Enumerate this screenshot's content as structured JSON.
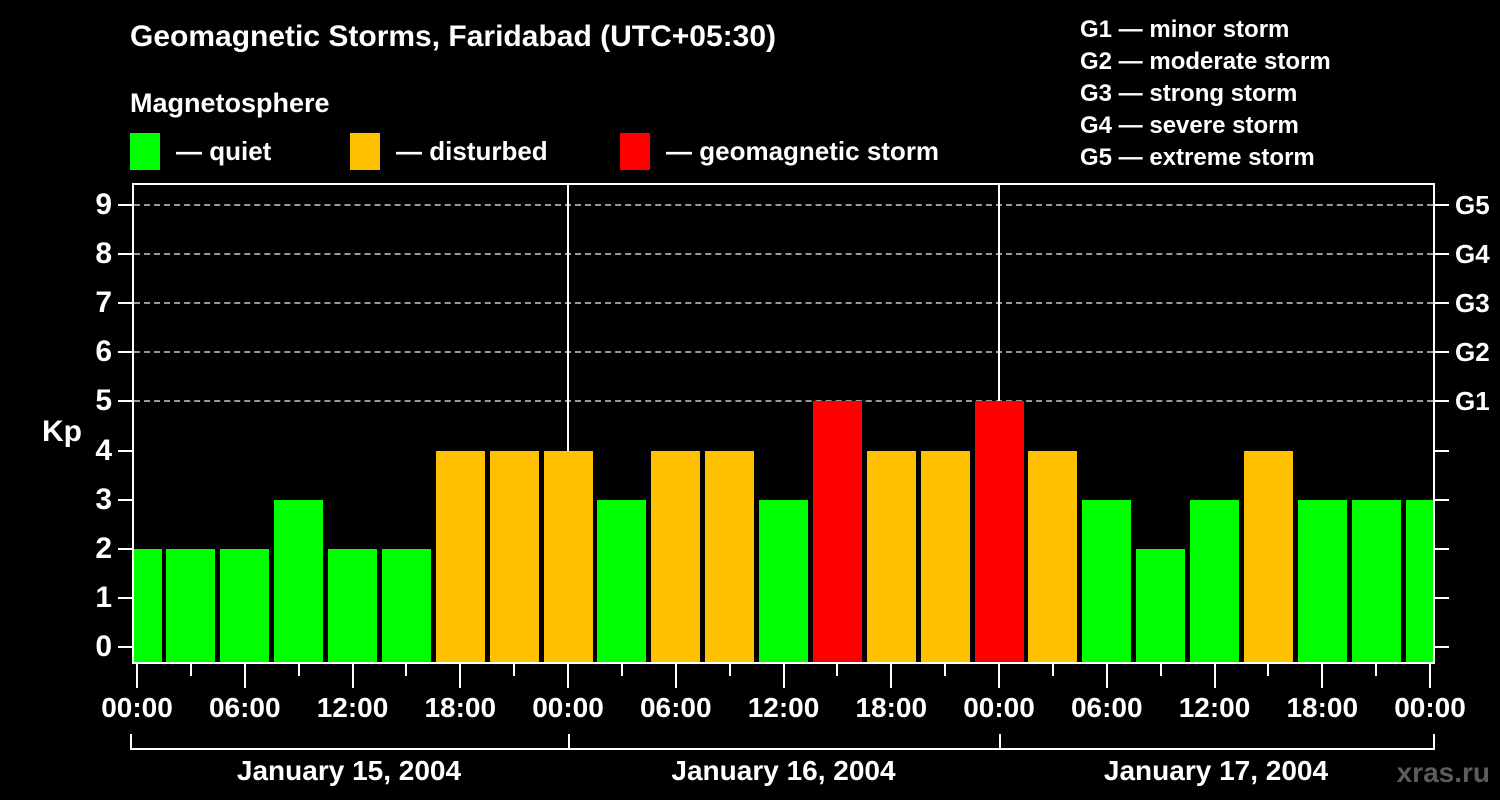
{
  "header": {
    "title": "Geomagnetic Storms, Faridabad (UTC+05:30)",
    "subtitle": "Magnetosphere"
  },
  "legend": {
    "items": [
      {
        "status": "quiet",
        "label": "— quiet",
        "color": "#00ff00"
      },
      {
        "status": "disturbed",
        "label": "— disturbed",
        "color": "#ffc000"
      },
      {
        "status": "storm",
        "label": "— geomagnetic storm",
        "color": "#ff0000"
      }
    ]
  },
  "storm_scale": {
    "lines": [
      "G1 — minor storm",
      "G2 — moderate storm",
      "G3 — strong storm",
      "G4 — severe storm",
      "G5 — extreme storm"
    ]
  },
  "axes": {
    "y_title": "Kp",
    "y_ticks": [
      0,
      1,
      2,
      3,
      4,
      5,
      6,
      7,
      8,
      9
    ],
    "x_tick_labels": [
      "00:00",
      "06:00",
      "12:00",
      "18:00",
      "00:00",
      "06:00",
      "12:00",
      "18:00",
      "00:00",
      "06:00",
      "12:00",
      "18:00",
      "00:00"
    ],
    "right_labels": [
      {
        "kp": 9,
        "label": "G5"
      },
      {
        "kp": 8,
        "label": "G4"
      },
      {
        "kp": 7,
        "label": "G3"
      },
      {
        "kp": 6,
        "label": "G2"
      },
      {
        "kp": 5,
        "label": "G1"
      }
    ]
  },
  "footer": {
    "dates": [
      "January 15, 2004",
      "January 16, 2004",
      "January 17, 2004"
    ],
    "watermark": "xras.ru"
  },
  "chart_data": {
    "type": "bar",
    "title": "Geomagnetic Storms, Faridabad (UTC+05:30)",
    "subtitle": "Magnetosphere",
    "ylabel": "Kp",
    "ylim": [
      0,
      9.4
    ],
    "grid_dashed_at_kp": [
      5,
      6,
      7,
      8,
      9
    ],
    "x_hours": [
      0,
      3,
      6,
      9,
      12,
      15,
      18,
      21,
      24,
      27,
      30,
      33,
      36,
      39,
      42,
      45,
      48,
      51,
      54,
      57,
      60,
      63,
      66,
      69,
      72
    ],
    "kp_values": [
      2,
      2,
      2,
      3,
      2,
      2,
      4,
      4,
      4,
      3,
      4,
      4,
      3,
      5,
      4,
      4,
      5,
      4,
      3,
      2,
      3,
      4,
      3,
      3,
      3
    ],
    "hours_per_bar": 3,
    "day_boundaries_hours": [
      24,
      48
    ],
    "days": [
      "January 15, 2004",
      "January 16, 2004",
      "January 17, 2004"
    ],
    "status_rules": {
      "quiet_kp_max": 3,
      "disturbed_kp_max": 4,
      "storm_kp_min": 5
    },
    "colors": {
      "quiet": "#00ff00",
      "disturbed": "#ffc000",
      "storm": "#ff0000"
    },
    "legend_position": "top-left",
    "right_axis": "G storm scale G1–G5 at Kp 5–9"
  }
}
